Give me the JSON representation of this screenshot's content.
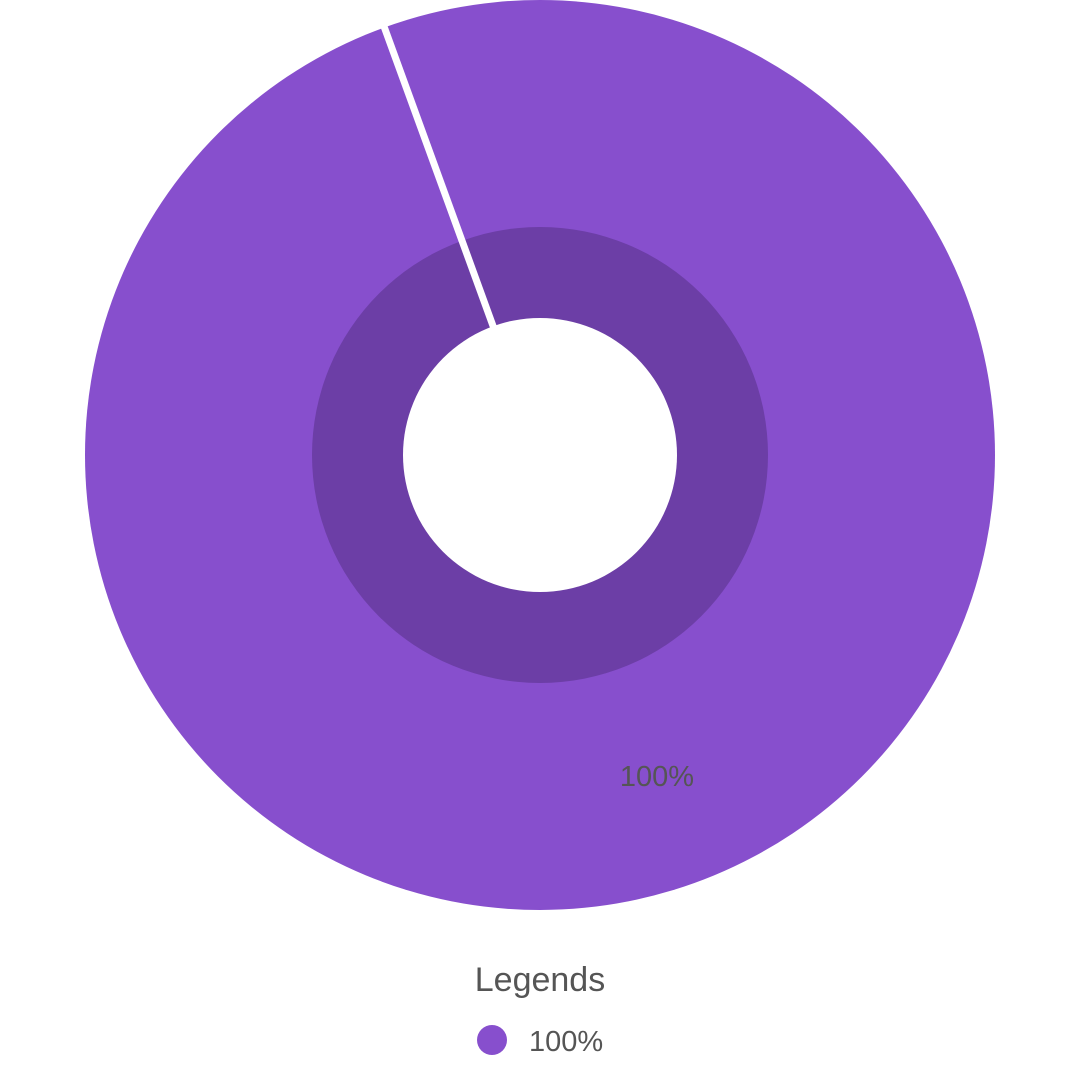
{
  "chart_data": {
    "type": "pie",
    "variant": "donut",
    "title": "",
    "categories": [
      "100%"
    ],
    "values": [
      100
    ],
    "slice_labels": [
      "100%"
    ],
    "legend": {
      "title": "Legends",
      "entries": [
        "100%"
      ],
      "position": "bottom"
    },
    "colors": {
      "slice": "#874fcd",
      "inner_ring": "#6c3ea6",
      "background": "#ffffff",
      "text": "#555555"
    }
  }
}
